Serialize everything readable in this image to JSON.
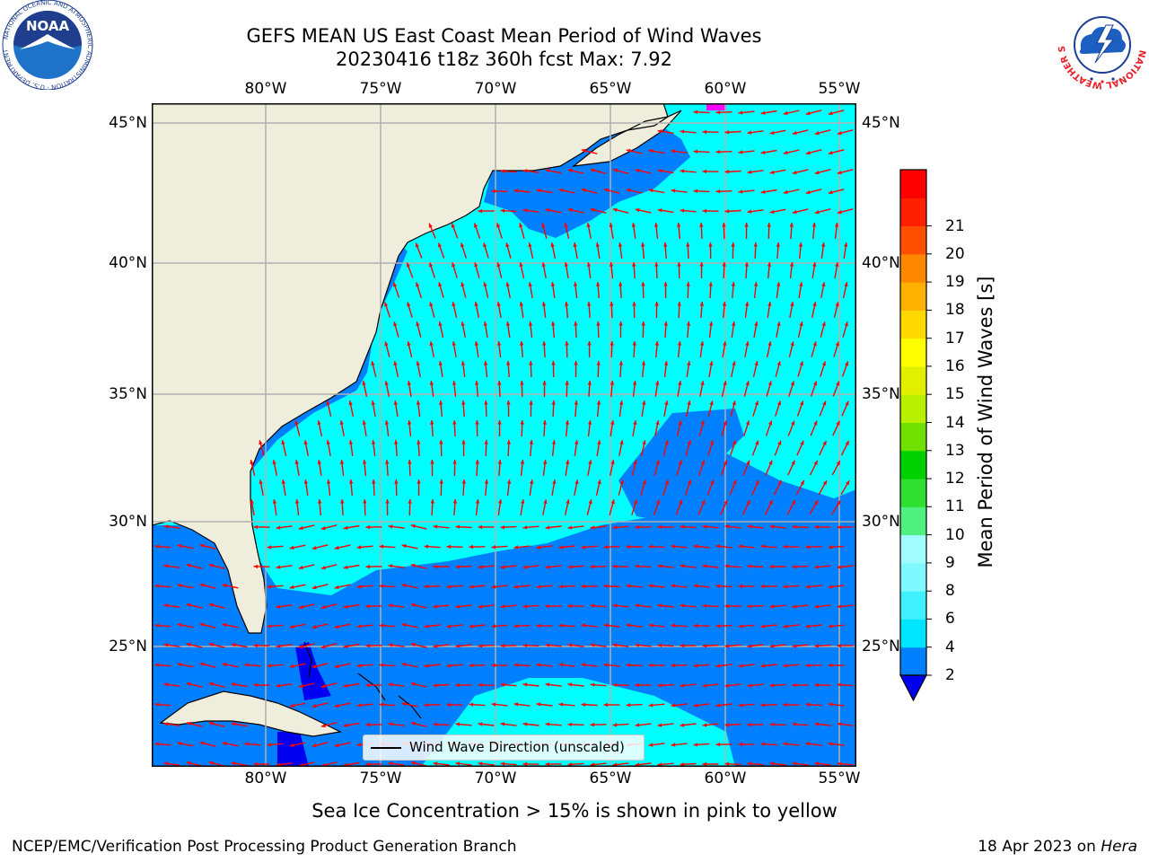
{
  "title": "GEFS MEAN US East Coast Mean Period of Wind Waves",
  "subtitle": "20230416 t18z 360h fcst   Max: 7.92",
  "lon_labels": [
    "80°W",
    "75°W",
    "70°W",
    "65°W",
    "60°W",
    "55°W"
  ],
  "lat_labels": [
    "45°N",
    "40°N",
    "35°N",
    "30°N",
    "25°N"
  ],
  "colorbar": {
    "title": "Mean Period of Wind Waves [s]",
    "ticks": [
      "2",
      "4",
      "6",
      "8",
      "9",
      "10",
      "11",
      "12",
      "13",
      "14",
      "15",
      "16",
      "17",
      "18",
      "19",
      "20",
      "21"
    ],
    "colors": [
      "#0080ff",
      "#00e5ff",
      "#40f0ff",
      "#80f8ff",
      "#a0fcff",
      "#50f080",
      "#30e030",
      "#00d000",
      "#70e000",
      "#b8f000",
      "#e0f000",
      "#ffff00",
      "#ffd800",
      "#ffb000",
      "#ff8800",
      "#ff5000",
      "#ff2000",
      "#ff0000"
    ],
    "under_color": "#0000f0"
  },
  "legend_label": "Wind Wave Direction (unscaled)",
  "map_colors": {
    "land": "#efeddc",
    "ocean_main": "#00ffff",
    "ocean_dark": "#0080ff",
    "ocean_deep": "#0000f0",
    "ice": "#ff00ff",
    "arrow": "#ff0000",
    "grid": "#b0b0b0"
  },
  "footer_subtitle": "Sea Ice Concentration > 15% is shown in pink to yellow",
  "footer_left": "NCEP/EMC/Verification Post Processing Product Generation Branch",
  "footer_date": "18 Apr 2023 on ",
  "footer_machine": "Hera",
  "logos": {
    "noaa_text": "NOAA",
    "noaa_ring": "NATIONAL OCEANIC AND ATMOSPHERIC ADMINISTRATION · U.S. DEPARTMENT OF COMMERCE",
    "nws_ring": "NATIONAL WEATHER SERVICE"
  }
}
